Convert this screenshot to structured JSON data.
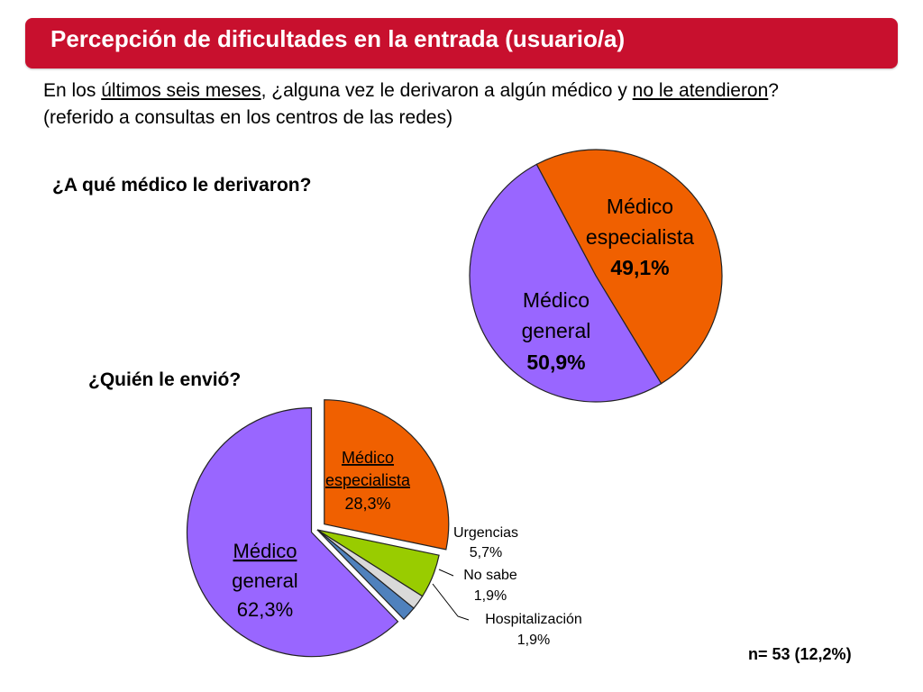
{
  "header": {
    "title": "Percepción de dificultades en la entrada (usuario/a)"
  },
  "question": {
    "part1": "En los ",
    "part2_underlined": "últimos seis meses",
    "part3": ", ¿alguna vez le derivaron a algún médico y ",
    "part4_underlined": "no le atendieron",
    "part5": "? (referido a consultas en los centros de las redes)"
  },
  "subquestions": {
    "first": "¿A qué médico le derivaron?",
    "second": "¿Quién le envió?"
  },
  "footnote": "n= 53 (12,2%)",
  "colors": {
    "title_bar": "#c8102e",
    "orange": "#f06000",
    "purple": "#9966ff",
    "green": "#99cc00",
    "gray": "#d9d9d9",
    "blue": "#4f81bd"
  },
  "chart_data": [
    {
      "type": "pie",
      "title": "¿A qué médico le derivaron?",
      "slices": [
        {
          "label_line1": "Médico",
          "label_line2": "especialista",
          "value": 49.1,
          "value_text": "49,1%",
          "color": "#f06000"
        },
        {
          "label_line1": "Médico",
          "label_line2": "general",
          "value": 50.9,
          "value_text": "50,9%",
          "color": "#9966ff"
        }
      ]
    },
    {
      "type": "pie",
      "title": "¿Quién le envió?",
      "slices": [
        {
          "label_line1": "Médico",
          "label_line2": "especialista",
          "value": 28.3,
          "value_text": "28,3%",
          "color": "#f06000"
        },
        {
          "label_line1": "Urgencias",
          "label_line2": "",
          "value": 5.7,
          "value_text": "5,7%",
          "color": "#99cc00"
        },
        {
          "label_line1": "No sabe",
          "label_line2": "",
          "value": 1.9,
          "value_text": "1,9%",
          "color": "#d9d9d9"
        },
        {
          "label_line1": "Hospitalización",
          "label_line2": "",
          "value": 1.9,
          "value_text": "1,9%",
          "color": "#4f81bd"
        },
        {
          "label_line1": "Médico",
          "label_line2": "general",
          "value": 62.3,
          "value_text": "62,3%",
          "color": "#9966ff"
        }
      ]
    }
  ]
}
